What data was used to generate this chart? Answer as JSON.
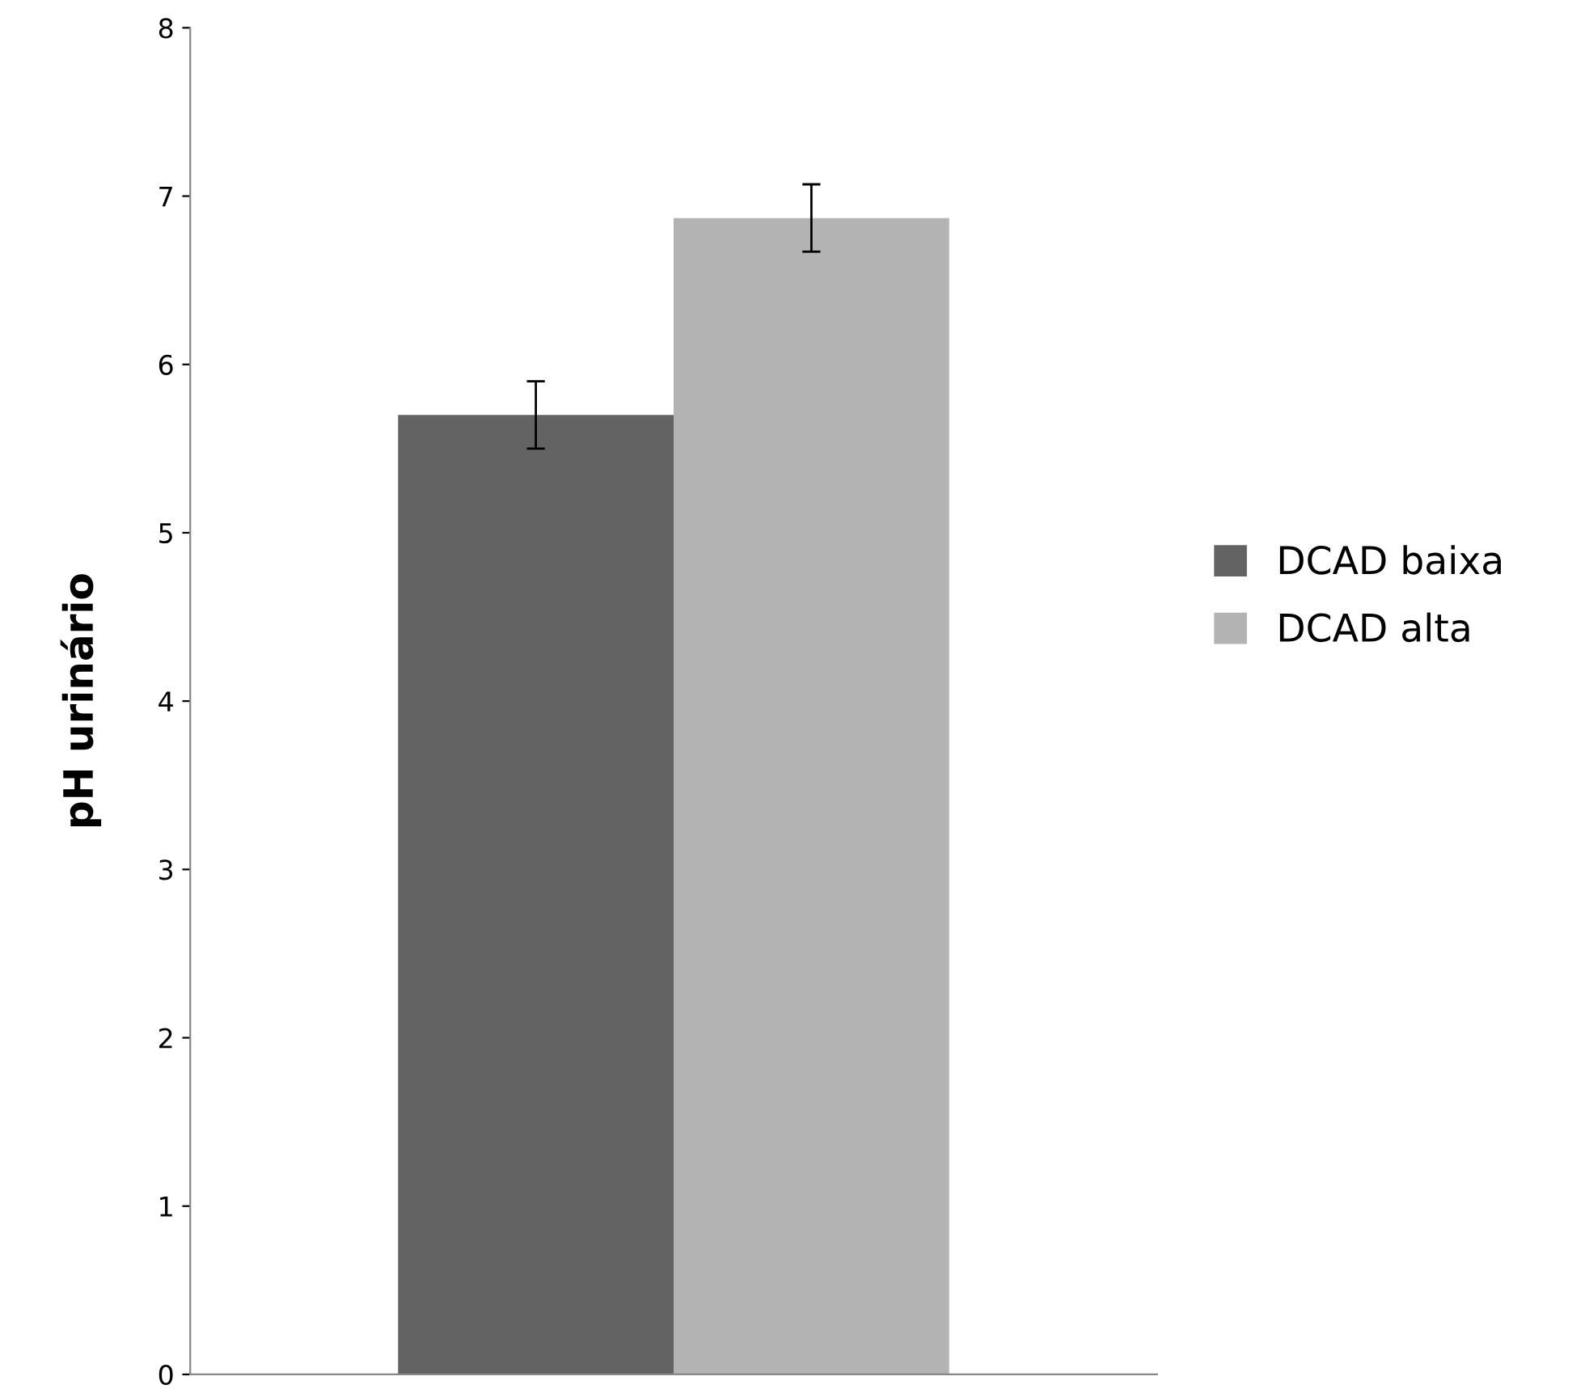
{
  "chart_data": {
    "type": "bar",
    "ylabel": "pH urinário",
    "categories": [
      null
    ],
    "series": [
      {
        "name": "DCAD baixa",
        "color": "#636363",
        "values": [
          5.7
        ],
        "errors": [
          0.2
        ]
      },
      {
        "name": "DCAD alta",
        "color": "#b3b3b3",
        "values": [
          6.87
        ],
        "errors": [
          0.2
        ]
      }
    ],
    "ylim": [
      0,
      8
    ],
    "yticks": [
      0,
      1,
      2,
      3,
      4,
      5,
      6,
      7,
      8
    ],
    "grid": false,
    "legend": "right"
  }
}
